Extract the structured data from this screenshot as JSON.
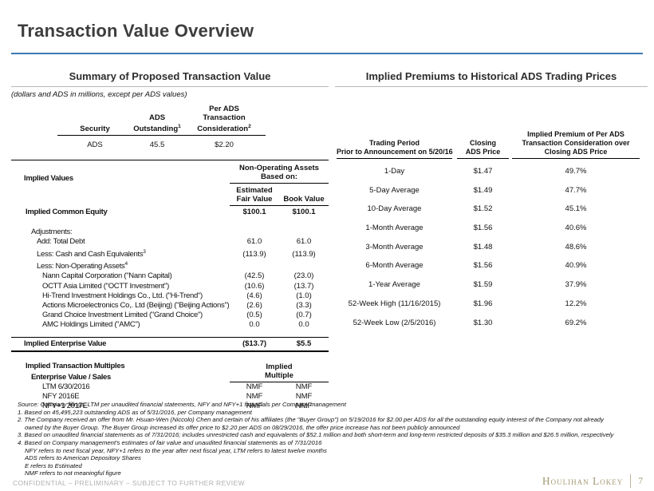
{
  "title": "Transaction Value Overview",
  "left": {
    "section_title": "Summary of Proposed Transaction Value",
    "units_note": "(dollars and ADS in millions, except per ADS values)",
    "security": {
      "col1": {
        "l1": "Security"
      },
      "col2": {
        "l1": "ADS",
        "l2": "Outstanding",
        "sup": "1"
      },
      "col3": {
        "l1": "Per ADS",
        "l2": "Transaction",
        "l3": "Consideration",
        "sup": "2"
      },
      "row": {
        "security": "ADS",
        "outstanding": "45.5",
        "consideration": "$2.20"
      }
    },
    "implied": {
      "title": "Implied Values",
      "noa_header": {
        "l1": "Non-Operating Assets",
        "l2": "Based on:"
      },
      "col1_header": {
        "l1": "Estimated",
        "l2": "Fair Value"
      },
      "col2_header": "Book Value",
      "rows": [
        {
          "label": "Implied Common Equity",
          "v1": "$100.1",
          "v2": "$100.1"
        },
        {
          "label": "Adjustments:"
        },
        {
          "label": "Add: Total Debt",
          "v1": "61.0",
          "v2": "61.0"
        },
        {
          "label": "Less: Cash and Cash Equivalents",
          "sup": "3",
          "v1": "(113.9)",
          "v2": "(113.9)"
        },
        {
          "label": "Less: Non-Operating Assets",
          "sup": "4"
        },
        {
          "label": "Nann Capital Corporation (\"Nann Capital)",
          "v1": "(42.5)",
          "v2": "(23.0)"
        },
        {
          "label": "OCTT Asia Limited (\"OCTT Investment\")",
          "v1": "(10.6)",
          "v2": "(13.7)"
        },
        {
          "label": "Hi-Trend Investment Holdings Co., Ltd. (\"Hi-Trend\")",
          "v1": "(4.6)",
          "v2": "(1.0)"
        },
        {
          "label": "Actions Microelectronics Co,. Ltd (Beijing) (\"Beijing Actions\")",
          "v1": "(2.6)",
          "v2": "(3.3)"
        },
        {
          "label": "Grand Choice Investment Limited (\"Grand Choice\")",
          "v1": "(0.5)",
          "v2": "(0.7)"
        },
        {
          "label": "AMC Holdings Limited (\"AMC\")",
          "v1": "0.0",
          "v2": "0.0"
        },
        {
          "label": "Implied Enterprise Value",
          "v1": "($13.7)",
          "v2": "$5.5"
        }
      ]
    },
    "multiples": {
      "title": "Implied Transaction Multiples",
      "subtitle": "Enterprise Value / Sales",
      "col_header": {
        "l1": "Implied",
        "l2": "Multiple"
      },
      "rows": [
        {
          "label": "LTM 6/30/2016",
          "v1": "NMF",
          "v2": "NMF"
        },
        {
          "label": "NFY 2016E",
          "v1": "NMF",
          "v2": "NMF"
        },
        {
          "label": "NFY+1 2017E",
          "v1": "NMF",
          "v2": "NMF"
        }
      ]
    }
  },
  "right": {
    "section_title": "Implied Premiums to Historical ADS Trading Prices",
    "headers": {
      "period": {
        "l1": "Trading Period",
        "l2": "Prior to Announcement on 5/20/16"
      },
      "closing": {
        "l1": "Closing",
        "l2": "ADS Price"
      },
      "premium": {
        "l1": "Implied Premium of Per ADS",
        "l2": "Transaction Consideration over",
        "l3": "Closing ADS Price"
      }
    },
    "rows": [
      {
        "period": "1-Day",
        "price": "$1.47",
        "premium": "49.7%"
      },
      {
        "period": "5-Day Average",
        "price": "$1.49",
        "premium": "47.7%"
      },
      {
        "period": "10-Day Average",
        "price": "$1.52",
        "premium": "45.1%"
      },
      {
        "period": "1-Month Average",
        "price": "$1.56",
        "premium": "40.6%"
      },
      {
        "period": "3-Month Average",
        "price": "$1.48",
        "premium": "48.6%"
      },
      {
        "period": "6-Month Average",
        "price": "$1.56",
        "premium": "40.9%"
      },
      {
        "period": "1-Year Average",
        "price": "$1.59",
        "premium": "37.9%"
      },
      {
        "period": "52-Week High (11/16/2015)",
        "price": "$1.96",
        "premium": "12.2%"
      },
      {
        "period": "52-Week Low (2/5/2016)",
        "price": "$1.30",
        "premium": "69.2%"
      }
    ]
  },
  "footnotes": [
    "Source: Company filings; LTM per unaudited financial statements, NFY and NFY+1 financials per Company management",
    "1. Based on 45,495,223 outstanding ADS as of 5/31/2016, per Company management",
    "2. The Company received an offer from Mr. Hsuan-Wen (Niccolo) Chen and certain of his affiliates (the \"Buyer Group\") on 5/19/2016 for $2.00 per ADS for all the outstanding equity interest of the Company not already",
    "owned by the Buyer Group. The Buyer Group increased its offer price to $2.20 per ADS on 08/29/2016, the offer price increase has not been publicly announced",
    "3. Based on unaudited financial statements as of 7/31/2016; includes unrestricted cash and equivalents of $52.1 million and both short-term and long-term restricted deposits of $35.3 million and $26.5 million, respectively",
    "4. Based on Company management's estimates of fair value and unaudited financial statements as of 7/31/2016",
    "NFY refers to next fiscal year, NFY+1 refers to the year after next fiscal year, LTM refers to latest twelve months",
    "ADS refers to American Depository Shares",
    "E refers to Estimated",
    "NMF refers to not meaningful figure"
  ],
  "footer": {
    "confidential": "CONFIDENTIAL – PRELIMINARY – SUBJECT TO FURTHER REVIEW",
    "brand": "Houlihan Lokey",
    "page_number": "7"
  }
}
